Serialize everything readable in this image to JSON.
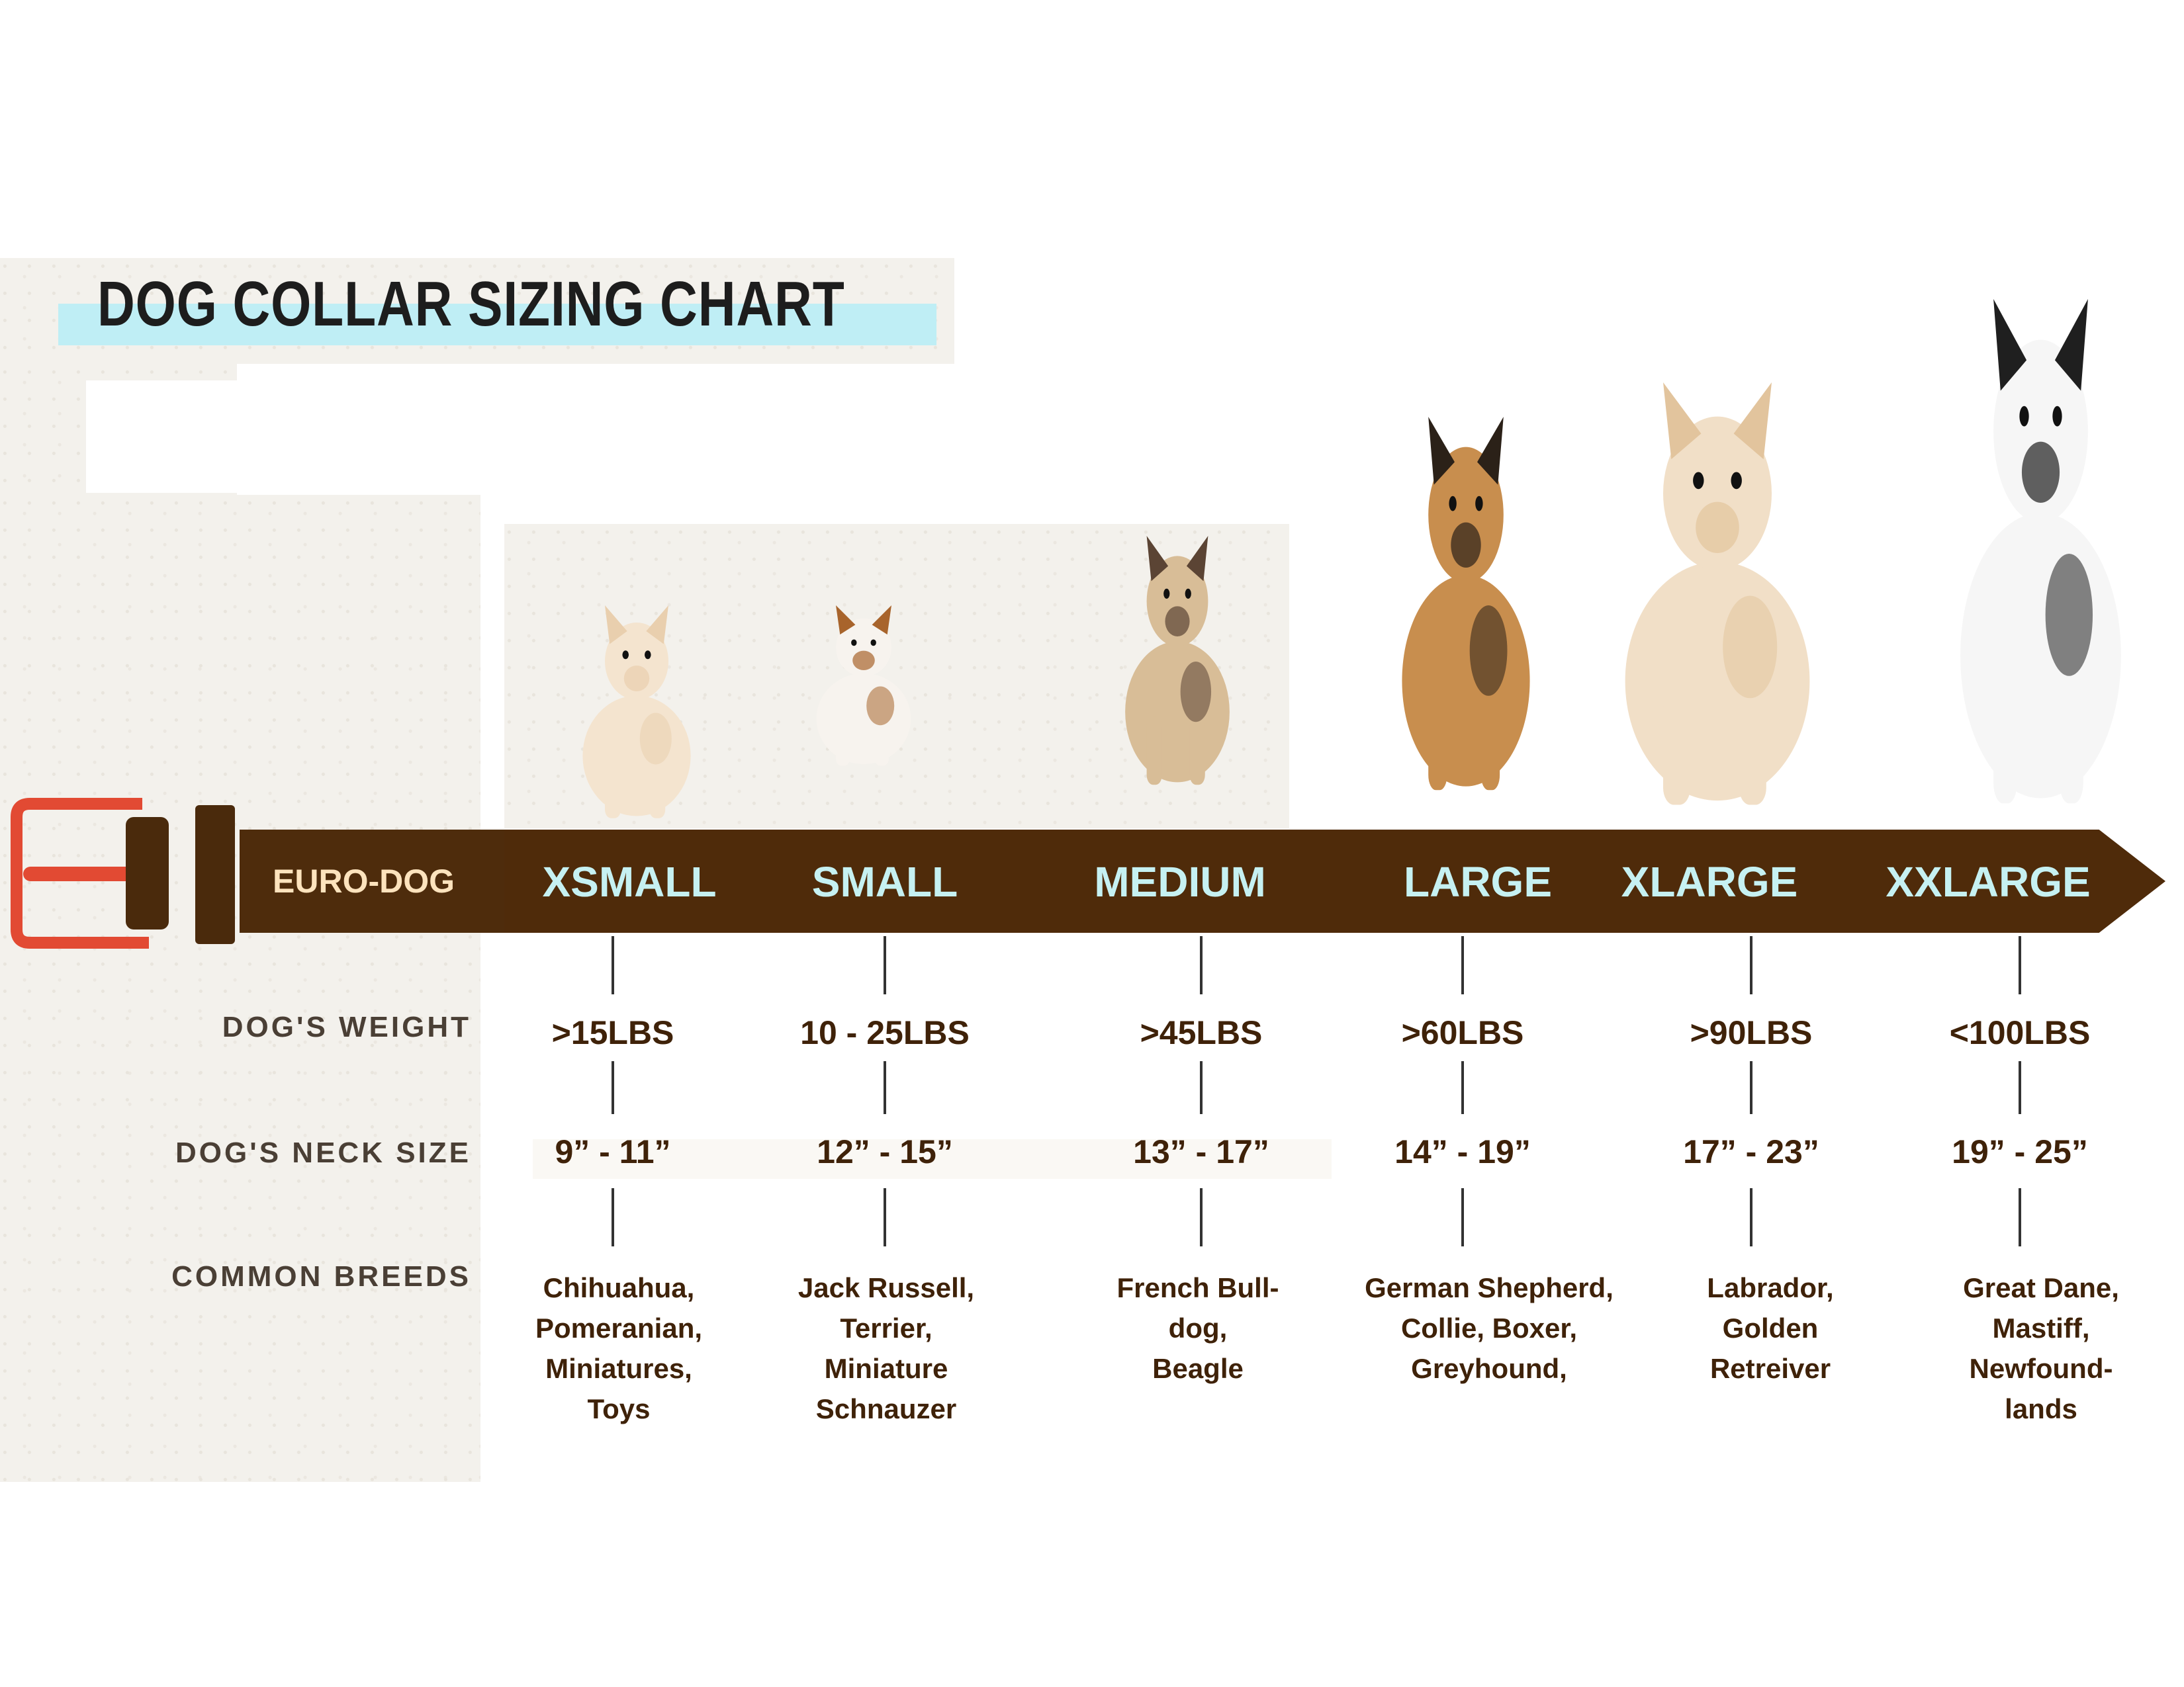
{
  "title": "DOG COLLAR SIZING CHART",
  "colors": {
    "belt": "#4f2b0a",
    "size_label": "#c6f1f2",
    "title_highlight": "#bfeef5",
    "text": "#3f2209",
    "buckle": "#e24a33"
  },
  "belt": {
    "brand": "EURO-DOG"
  },
  "row_labels": {
    "weight": "DOG'S WEIGHT",
    "neck": "DOG'S NECK SIZE",
    "breeds": "COMMON BREEDS"
  },
  "sizes": [
    {
      "label": "XSMALL",
      "weight": ">15LBS",
      "neck": "9” - 11”",
      "breeds": [
        "Chihuahua,",
        "Pomeranian,",
        "Miniatures,",
        "Toys"
      ]
    },
    {
      "label": "SMALL",
      "weight": "10 - 25LBS",
      "neck": "12” - 15”",
      "breeds": [
        "Jack Russell,",
        "Terrier,",
        "Miniature",
        "Schnauzer"
      ]
    },
    {
      "label": "MEDIUM",
      "weight": ">45LBS",
      "neck": "13” - 17”",
      "breeds": [
        "French Bull-",
        "dog,",
        "Beagle"
      ]
    },
    {
      "label": "LARGE",
      "weight": ">60LBS",
      "neck": "14” - 19”",
      "breeds": [
        "German Shepherd,",
        "Collie, Boxer,",
        "Greyhound,"
      ]
    },
    {
      "label": "XLARGE",
      "weight": ">90LBS",
      "neck": "17” - 23”",
      "breeds": [
        "Labrador,",
        "Golden",
        "Retreiver"
      ]
    },
    {
      "label": "XXLARGE",
      "weight": "<100LBS",
      "neck": "19” - 25”",
      "breeds": [
        "Great Dane,",
        "Mastiff,",
        "Newfound-",
        "lands"
      ]
    }
  ],
  "dogs": [
    "pomeranian-photo",
    "jack-russell-photo",
    "french-bulldog-photo",
    "german-shepherd-photo",
    "labrador-photo",
    "great-dane-photo"
  ]
}
